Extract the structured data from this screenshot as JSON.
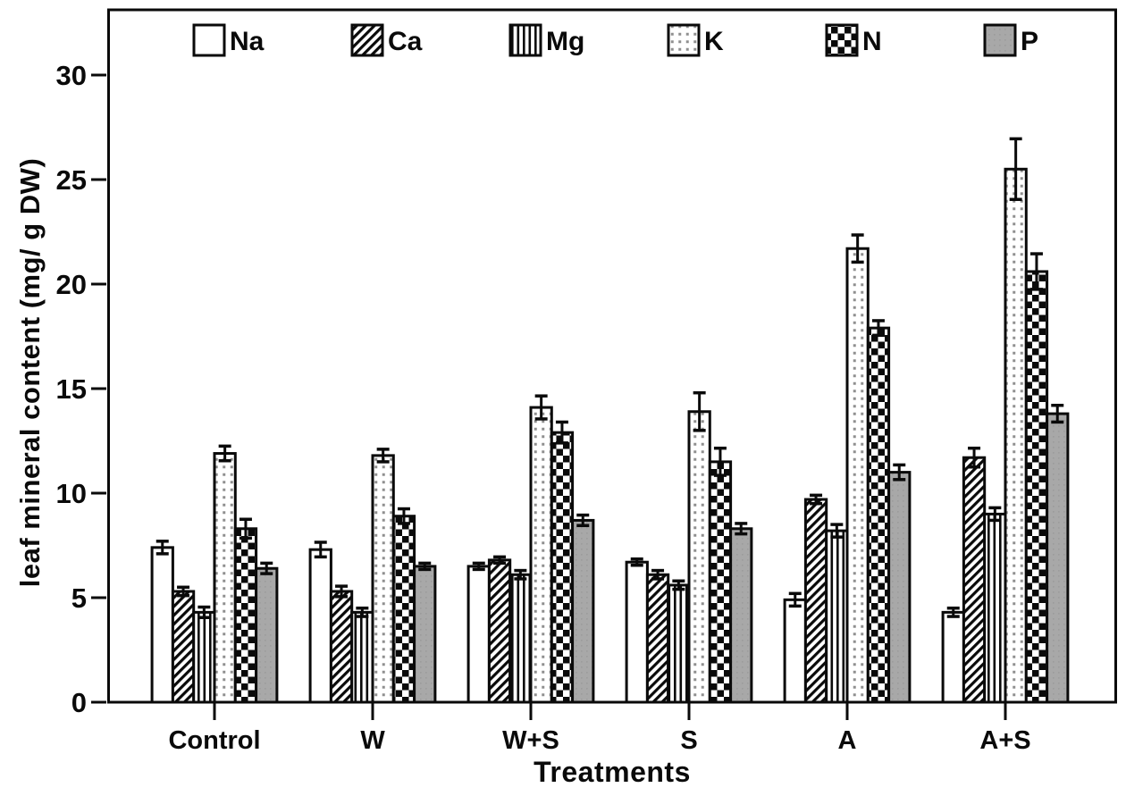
{
  "chart_data": {
    "type": "bar",
    "title": "",
    "xlabel": "Treatments",
    "ylabel": "leaf mineral content (mg/ g DW)",
    "categories": [
      "Control",
      "W",
      "W+S",
      "S",
      "A",
      "A+S"
    ],
    "series": [
      {
        "name": "Na",
        "pattern": "plain",
        "values": [
          7.4,
          7.3,
          6.5,
          6.7,
          4.9,
          4.3
        ],
        "errors": [
          0.3,
          0.35,
          0.15,
          0.15,
          0.3,
          0.2
        ]
      },
      {
        "name": "Ca",
        "pattern": "diagonal-stripes",
        "values": [
          5.3,
          5.3,
          6.8,
          6.1,
          9.7,
          11.7
        ],
        "errors": [
          0.2,
          0.25,
          0.15,
          0.2,
          0.2,
          0.45
        ]
      },
      {
        "name": "Mg",
        "pattern": "vertical-stripes",
        "values": [
          4.3,
          4.3,
          6.1,
          5.6,
          8.2,
          9.0
        ],
        "errors": [
          0.25,
          0.2,
          0.2,
          0.2,
          0.3,
          0.3
        ]
      },
      {
        "name": "K",
        "pattern": "dots",
        "values": [
          11.9,
          11.8,
          14.1,
          13.9,
          21.7,
          25.5
        ],
        "errors": [
          0.35,
          0.3,
          0.55,
          0.9,
          0.65,
          1.45
        ]
      },
      {
        "name": "N",
        "pattern": "checkerboard",
        "values": [
          8.3,
          8.9,
          12.9,
          11.5,
          17.9,
          20.6
        ],
        "errors": [
          0.45,
          0.35,
          0.5,
          0.65,
          0.35,
          0.85
        ]
      },
      {
        "name": "P",
        "pattern": "solid-gray",
        "values": [
          6.4,
          6.5,
          8.7,
          8.3,
          11.0,
          13.8
        ],
        "errors": [
          0.25,
          0.15,
          0.25,
          0.25,
          0.35,
          0.4
        ]
      }
    ],
    "ylim": [
      0,
      33
    ],
    "yticks": [
      0,
      5,
      10,
      15,
      20,
      25,
      30
    ],
    "grid": false,
    "error_bars": true,
    "legend_position": "top-inside",
    "legend_labels": [
      "Na",
      "Ca",
      "Mg",
      "K",
      "N",
      "P"
    ],
    "colors": {
      "ink": "#0a0a0a",
      "solid_gray_fill": "#a8a8a8",
      "dot_gray": "#8f8f8f",
      "background": "#ffffff"
    }
  }
}
